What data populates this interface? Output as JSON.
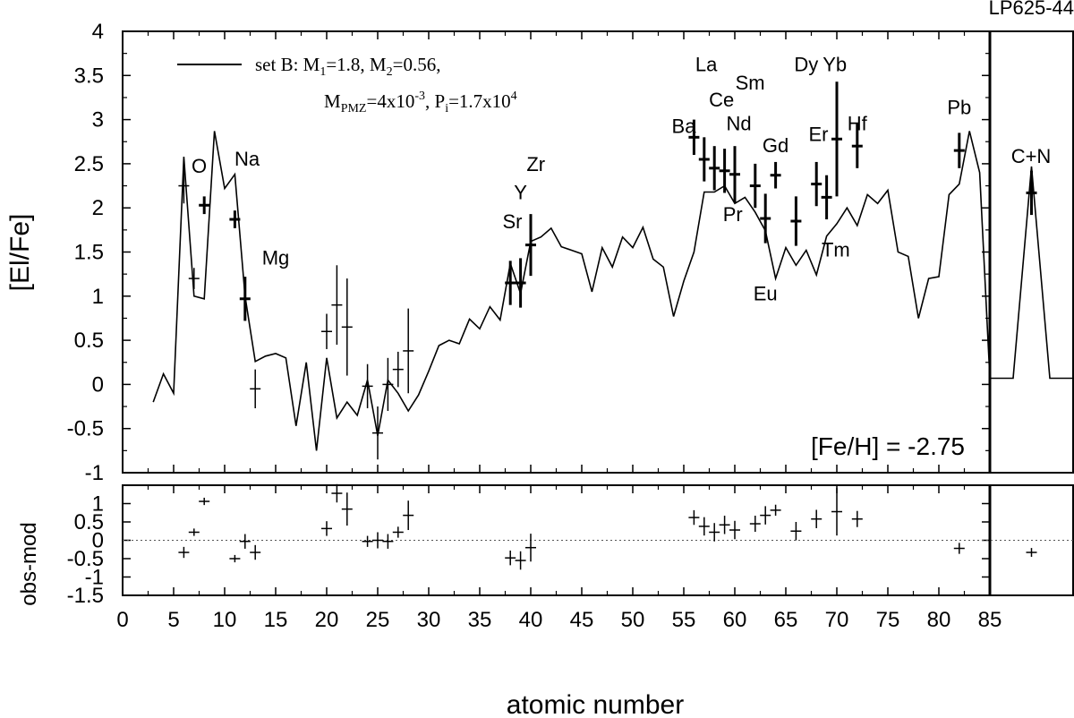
{
  "chart_data": {
    "type": "line",
    "star": "LP625-44",
    "metallicity_label": "[Fe/H] = -2.75",
    "xlabel": "atomic number",
    "ylabel_main": "[El/Fe]",
    "ylabel_resid": "obs-mod",
    "xlim": [
      0,
      85
    ],
    "ylim_main": [
      -1,
      4
    ],
    "ylim_resid": [
      -1.5,
      1.5
    ],
    "x_ticks": [
      0,
      5,
      10,
      15,
      20,
      25,
      30,
      35,
      40,
      45,
      50,
      55,
      60,
      65,
      70,
      75,
      80,
      85
    ],
    "y_ticks_main": [
      "-1",
      "-0.5",
      "0",
      "0.5",
      "1",
      "1.5",
      "2",
      "2.5",
      "3",
      "3.5",
      "4"
    ],
    "y_ticks_resid": [
      "-1.5",
      "-1",
      "-0.5",
      "0",
      "0.5",
      "1"
    ],
    "legend": {
      "line1_prefix": "set B: M",
      "line1_sub1": "1",
      "line1_mid": "=1.8, M",
      "line1_sub2": "2",
      "line1_end": "=0.56,",
      "line2_prefix": "M",
      "line2_sub": "PMZ",
      "line2_mid": "=4x10",
      "line2_sup": "-3",
      "line2_mid2": ", P",
      "line2_sub2": "i",
      "line2_mid3": "=1.7x10",
      "line2_sup2": "4"
    },
    "model": {
      "name": "set B",
      "x": [
        3,
        4,
        5,
        6,
        7,
        8,
        9,
        10,
        11,
        12,
        13,
        14,
        15,
        16,
        17,
        18,
        19,
        20,
        21,
        22,
        23,
        24,
        25,
        26,
        27,
        28,
        29,
        30,
        31,
        32,
        33,
        34,
        35,
        36,
        37,
        38,
        39,
        40,
        41,
        42,
        43,
        44,
        45,
        46,
        47,
        48,
        49,
        50,
        51,
        52,
        53,
        54,
        55,
        56,
        57,
        58,
        59,
        60,
        61,
        62,
        63,
        64,
        65,
        66,
        67,
        68,
        69,
        70,
        71,
        72,
        73,
        74,
        75,
        76,
        77,
        78,
        79,
        80,
        81,
        82,
        83,
        84,
        85
      ],
      "y": [
        -0.2,
        0.12,
        -0.1,
        2.58,
        1.0,
        0.97,
        2.87,
        2.22,
        2.38,
        1.0,
        0.26,
        0.32,
        0.35,
        0.3,
        -0.47,
        0.25,
        -0.75,
        0.3,
        -0.38,
        -0.2,
        -0.35,
        0.05,
        -0.58,
        0.05,
        -0.1,
        -0.3,
        -0.12,
        0.15,
        0.44,
        0.5,
        0.46,
        0.74,
        0.63,
        0.88,
        0.73,
        1.37,
        1.03,
        1.62,
        1.67,
        1.77,
        1.56,
        1.52,
        1.48,
        1.05,
        1.55,
        1.33,
        1.67,
        1.55,
        1.78,
        1.42,
        1.33,
        0.77,
        1.17,
        1.5,
        2.18,
        2.18,
        2.25,
        2.05,
        2.12,
        1.95,
        1.74,
        1.2,
        1.55,
        1.35,
        1.52,
        1.24,
        1.68,
        1.82,
        2.0,
        1.8,
        2.15,
        2.05,
        2.2,
        1.5,
        1.45,
        0.75,
        1.2,
        1.22,
        2.15,
        2.27,
        2.87,
        2.4,
        0.07
      ]
    },
    "observed": [
      {
        "z": 6,
        "y": 2.25,
        "err": 0.2,
        "label": "O"
      },
      {
        "z": 7,
        "y": 1.2,
        "err": 0.12,
        "label": ""
      },
      {
        "z": 8,
        "y": 2.03,
        "err": 0.1,
        "label": ""
      },
      {
        "z": 11,
        "y": 1.87,
        "err": 0.1,
        "label": "Na"
      },
      {
        "z": 12,
        "y": 0.97,
        "err": 0.25,
        "label": "Mg"
      },
      {
        "z": 13,
        "y": -0.05,
        "err": 0.22,
        "label": ""
      },
      {
        "z": 20,
        "y": 0.6,
        "err": 0.2,
        "label": ""
      },
      {
        "z": 21,
        "y": 0.9,
        "err": 0.45,
        "label": ""
      },
      {
        "z": 22,
        "y": 0.65,
        "err": 0.55,
        "label": ""
      },
      {
        "z": 24,
        "y": -0.02,
        "err": 0.25,
        "label": ""
      },
      {
        "z": 25,
        "y": -0.55,
        "err": 0.3,
        "label": ""
      },
      {
        "z": 26,
        "y": 0.0,
        "err": 0.3,
        "label": ""
      },
      {
        "z": 27,
        "y": 0.17,
        "err": 0.2,
        "label": ""
      },
      {
        "z": 28,
        "y": 0.38,
        "err": 0.48,
        "label": ""
      },
      {
        "z": 38,
        "y": 1.15,
        "err": 0.25,
        "label": "Sr"
      },
      {
        "z": 39,
        "y": 1.15,
        "err": 0.28,
        "label": "Y"
      },
      {
        "z": 40,
        "y": 1.58,
        "err": 0.35,
        "label": "Zr"
      },
      {
        "z": 56,
        "y": 2.8,
        "err": 0.2,
        "label": "Ba"
      },
      {
        "z": 57,
        "y": 2.55,
        "err": 0.25,
        "label": "La"
      },
      {
        "z": 58,
        "y": 2.45,
        "err": 0.25,
        "label": "Ce"
      },
      {
        "z": 59,
        "y": 2.42,
        "err": 0.25,
        "label": "Pr"
      },
      {
        "z": 60,
        "y": 2.38,
        "err": 0.32,
        "label": "Nd"
      },
      {
        "z": 62,
        "y": 2.25,
        "err": 0.25,
        "label": "Sm"
      },
      {
        "z": 63,
        "y": 1.88,
        "err": 0.28,
        "label": "Eu"
      },
      {
        "z": 64,
        "y": 2.37,
        "err": 0.15,
        "label": "Gd"
      },
      {
        "z": 66,
        "y": 1.85,
        "err": 0.28,
        "label": "Dy"
      },
      {
        "z": 68,
        "y": 2.27,
        "err": 0.25,
        "label": "Er"
      },
      {
        "z": 69,
        "y": 2.12,
        "err": 0.25,
        "label": "Tm"
      },
      {
        "z": 70,
        "y": 2.78,
        "err": 0.65,
        "label": "Yb"
      },
      {
        "z": 72,
        "y": 2.7,
        "err": 0.25,
        "label": "Hf"
      },
      {
        "z": 82,
        "y": 2.65,
        "err": 0.2,
        "label": "Pb"
      }
    ],
    "labels": [
      {
        "text": "O",
        "x": 7.5,
        "y": 2.4
      },
      {
        "text": "Na",
        "x": 12.2,
        "y": 2.48
      },
      {
        "text": "Mg",
        "x": 15.0,
        "y": 1.36
      },
      {
        "text": "Sr",
        "x": 38.2,
        "y": 1.77
      },
      {
        "text": "Y",
        "x": 39.0,
        "y": 2.1
      },
      {
        "text": "Zr",
        "x": 40.5,
        "y": 2.42
      },
      {
        "text": "Ba",
        "x": 55.0,
        "y": 2.85
      },
      {
        "text": "La",
        "x": 57.2,
        "y": 3.55
      },
      {
        "text": "Ce",
        "x": 58.7,
        "y": 3.15
      },
      {
        "text": "Sm",
        "x": 61.5,
        "y": 3.34
      },
      {
        "text": "Nd",
        "x": 60.4,
        "y": 2.88
      },
      {
        "text": "Pr",
        "x": 59.8,
        "y": 1.85
      },
      {
        "text": "Gd",
        "x": 64.0,
        "y": 2.63
      },
      {
        "text": "Dy",
        "x": 67.0,
        "y": 3.55
      },
      {
        "text": "Yb",
        "x": 69.8,
        "y": 3.55
      },
      {
        "text": "Er",
        "x": 68.2,
        "y": 2.76
      },
      {
        "text": "Hf",
        "x": 72.0,
        "y": 2.88
      },
      {
        "text": "Eu",
        "x": 63.0,
        "y": 0.95
      },
      {
        "text": "Tm",
        "x": 69.9,
        "y": 1.45
      },
      {
        "text": "Pb",
        "x": 82.0,
        "y": 3.06
      }
    ],
    "inset": {
      "label": "C+N",
      "model_y": [
        0.07,
        0.07,
        2.47,
        0.07,
        0.07
      ],
      "model_x": [
        0,
        0.28,
        0.5,
        0.72,
        1
      ],
      "obs": {
        "pos": 0.5,
        "y": 2.17,
        "err": 0.25
      },
      "resid": {
        "pos": 0.5,
        "y": -0.33,
        "err": 0.12
      }
    },
    "residuals": [
      {
        "z": 6,
        "y": -0.33,
        "err": 0.15
      },
      {
        "z": 7,
        "y": 0.22,
        "err": 0.1
      },
      {
        "z": 8,
        "y": 1.06,
        "err": 0.1
      },
      {
        "z": 11,
        "y": -0.5,
        "err": 0.1
      },
      {
        "z": 12,
        "y": -0.03,
        "err": 0.2
      },
      {
        "z": 13,
        "y": -0.33,
        "err": 0.2
      },
      {
        "z": 20,
        "y": 0.32,
        "err": 0.2
      },
      {
        "z": 21,
        "y": 1.28,
        "err": 0.25
      },
      {
        "z": 22,
        "y": 0.85,
        "err": 0.45
      },
      {
        "z": 24,
        "y": -0.03,
        "err": 0.15
      },
      {
        "z": 25,
        "y": 0.0,
        "err": 0.22
      },
      {
        "z": 26,
        "y": -0.03,
        "err": 0.2
      },
      {
        "z": 27,
        "y": 0.22,
        "err": 0.15
      },
      {
        "z": 28,
        "y": 0.68,
        "err": 0.4
      },
      {
        "z": 38,
        "y": -0.48,
        "err": 0.2
      },
      {
        "z": 39,
        "y": -0.55,
        "err": 0.25
      },
      {
        "z": 40,
        "y": -0.2,
        "err": 0.38
      },
      {
        "z": 56,
        "y": 0.62,
        "err": 0.2
      },
      {
        "z": 57,
        "y": 0.38,
        "err": 0.25
      },
      {
        "z": 58,
        "y": 0.22,
        "err": 0.25
      },
      {
        "z": 59,
        "y": 0.42,
        "err": 0.25
      },
      {
        "z": 60,
        "y": 0.28,
        "err": 0.25
      },
      {
        "z": 62,
        "y": 0.45,
        "err": 0.22
      },
      {
        "z": 63,
        "y": 0.68,
        "err": 0.25
      },
      {
        "z": 64,
        "y": 0.82,
        "err": 0.15
      },
      {
        "z": 66,
        "y": 0.25,
        "err": 0.25
      },
      {
        "z": 68,
        "y": 0.58,
        "err": 0.25
      },
      {
        "z": 70,
        "y": 0.78,
        "err": 0.65
      },
      {
        "z": 72,
        "y": 0.58,
        "err": 0.22
      },
      {
        "z": 82,
        "y": -0.22,
        "err": 0.15
      }
    ]
  }
}
